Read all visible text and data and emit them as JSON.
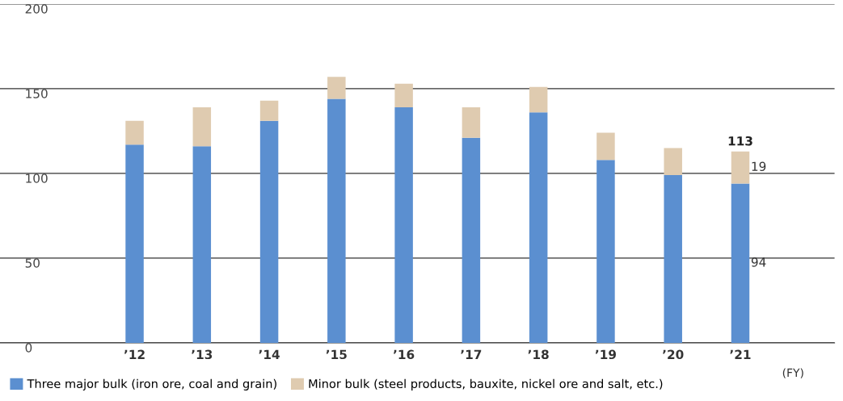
{
  "chart_data": {
    "type": "bar",
    "stacked": true,
    "categories": [
      "’12",
      "’13",
      "’14",
      "’15",
      "’16",
      "’17",
      "’18",
      "’19",
      "’20",
      "’21"
    ],
    "series": [
      {
        "name": "Three major bulk (iron ore, coal and grain)",
        "color": "#5b8fd0",
        "values": [
          117,
          116,
          131,
          144,
          139,
          121,
          136,
          108,
          99,
          94
        ],
        "value_labels": [
          null,
          null,
          null,
          null,
          null,
          null,
          null,
          null,
          null,
          "94"
        ]
      },
      {
        "name": "Minor bulk (steel products, bauxite, nickel ore and salt, etc.)",
        "color": "#dfcbb0",
        "values": [
          14,
          23,
          12,
          13,
          14,
          18,
          15,
          16,
          16,
          19
        ],
        "value_labels": [
          null,
          null,
          null,
          null,
          null,
          null,
          null,
          null,
          null,
          "19"
        ]
      }
    ],
    "totals": [
      null,
      null,
      null,
      null,
      null,
      null,
      null,
      null,
      null,
      "113"
    ],
    "xlabel": "(FY)",
    "ylim": [
      0,
      200
    ],
    "yticks": [
      0,
      50,
      100,
      150,
      200
    ],
    "grid": "y",
    "legend": "bottom left"
  }
}
